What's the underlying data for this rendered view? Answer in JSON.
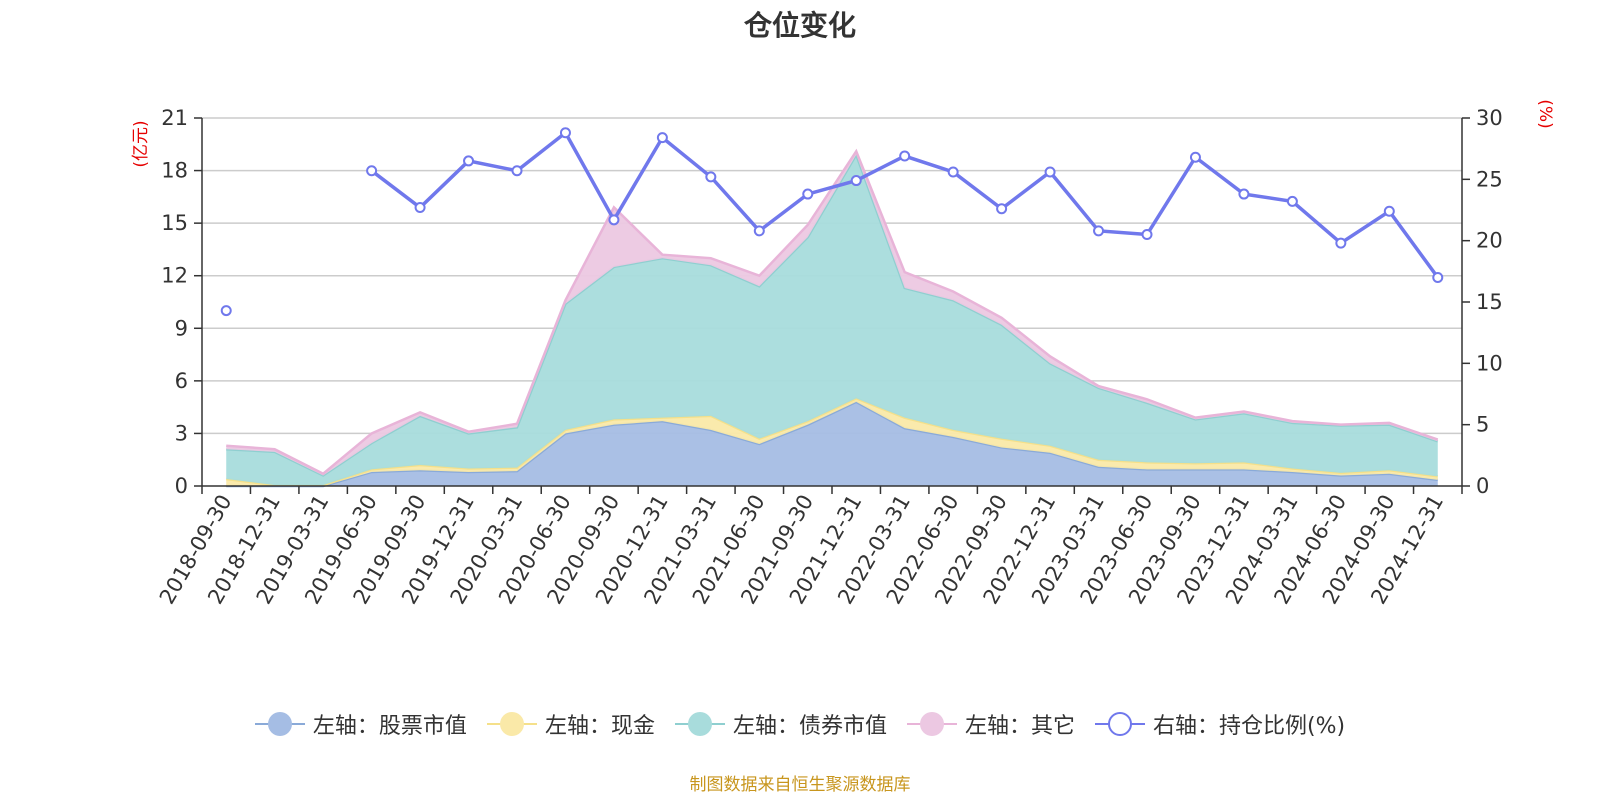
{
  "chart_data": {
    "type": "area",
    "title": "仓位变化",
    "left_axis_unit": "(亿元)",
    "right_axis_unit": "(%)",
    "left_ylim": [
      0,
      21
    ],
    "left_yticks": [
      0,
      3,
      6,
      9,
      12,
      15,
      18,
      21
    ],
    "right_ylim": [
      0,
      30
    ],
    "right_yticks": [
      0,
      5,
      10,
      15,
      20,
      25,
      30
    ],
    "categories": [
      "2018-09-30",
      "2018-12-31",
      "2019-03-31",
      "2019-06-30",
      "2019-09-30",
      "2019-12-31",
      "2020-03-31",
      "2020-06-30",
      "2020-09-30",
      "2020-12-31",
      "2021-03-31",
      "2021-06-30",
      "2021-09-30",
      "2021-12-31",
      "2022-03-31",
      "2022-06-30",
      "2022-09-30",
      "2022-12-31",
      "2023-03-31",
      "2023-06-30",
      "2023-09-30",
      "2023-12-31",
      "2024-03-31",
      "2024-06-30",
      "2024-09-30",
      "2024-12-31"
    ],
    "stacked_series": [
      {
        "name": "左轴：股票市值",
        "color": "#a5bde4",
        "line": "#8aaad8",
        "values": [
          0,
          0,
          0,
          0.8,
          0.9,
          0.8,
          0.85,
          3.0,
          3.5,
          3.7,
          3.2,
          2.4,
          3.5,
          4.8,
          3.3,
          2.8,
          2.2,
          1.9,
          1.1,
          0.95,
          0.95,
          0.95,
          0.8,
          0.6,
          0.7,
          0.35
        ]
      },
      {
        "name": "左轴：现金",
        "color": "#fae9a8",
        "line": "#f5e08a",
        "values": [
          0.4,
          0.05,
          0.05,
          0.15,
          0.3,
          0.2,
          0.2,
          0.2,
          0.3,
          0.2,
          0.8,
          0.3,
          0.2,
          0.2,
          0.6,
          0.4,
          0.5,
          0.4,
          0.4,
          0.4,
          0.35,
          0.4,
          0.2,
          0.15,
          0.2,
          0.2
        ]
      },
      {
        "name": "左轴：债券市值",
        "color": "#a8dcdc",
        "line": "#8fcfd0",
        "values": [
          1.7,
          1.9,
          0.55,
          1.5,
          2.8,
          2.0,
          2.3,
          7.2,
          8.7,
          9.1,
          8.6,
          8.7,
          10.5,
          13.9,
          7.4,
          7.4,
          6.5,
          4.7,
          4.1,
          3.4,
          2.5,
          2.8,
          2.6,
          2.7,
          2.6,
          2.0
        ]
      },
      {
        "name": "左轴：其它",
        "color": "#ecc8e2",
        "line": "#e8b4d8",
        "values": [
          0.2,
          0.15,
          0.1,
          0.55,
          0.2,
          0.1,
          0.2,
          0.2,
          3.4,
          0.2,
          0.4,
          0.6,
          0.7,
          0.2,
          0.9,
          0.5,
          0.4,
          0.4,
          0.1,
          0.2,
          0.1,
          0.1,
          0.1,
          0.05,
          0.1,
          0.1
        ]
      }
    ],
    "line_series": {
      "name": "右轴：持仓比例(%)",
      "color": "#7078ec",
      "values": [
        14.3,
        null,
        null,
        25.7,
        22.7,
        26.5,
        25.7,
        28.8,
        21.7,
        28.4,
        25.2,
        20.8,
        23.8,
        24.9,
        26.9,
        25.6,
        22.6,
        25.6,
        20.8,
        20.5,
        26.8,
        23.8,
        23.2,
        19.8,
        22.4,
        17.0
      ]
    }
  },
  "legend": [
    {
      "label": "左轴：股票市值",
      "kind": "area",
      "color": "#a5bde4",
      "line": "#8aaad8"
    },
    {
      "label": "左轴：现金",
      "kind": "area",
      "color": "#fae9a8",
      "line": "#f5e08a"
    },
    {
      "label": "左轴：债券市值",
      "kind": "area",
      "color": "#a8dcdc",
      "line": "#8fcfd0"
    },
    {
      "label": "左轴：其它",
      "kind": "area",
      "color": "#ecc8e2",
      "line": "#e8b4d8"
    },
    {
      "label": "右轴：持仓比例(%)",
      "kind": "line",
      "color": "#7078ec",
      "line": "#7078ec"
    }
  ],
  "footer": "制图数据来自恒生聚源数据库"
}
